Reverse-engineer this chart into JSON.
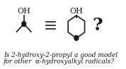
{
  "bg_color": "#ffffff",
  "line_color": "#1a1a1a",
  "text_color": "#1a1a1a",
  "line1": "Is 2-hydroxy-2-propyl a good model",
  "line2": "for other  α-hydroxyalkyl radicals?",
  "text_fontsize": 6.5,
  "figsize": [
    1.78,
    0.98
  ],
  "dpi": 100
}
